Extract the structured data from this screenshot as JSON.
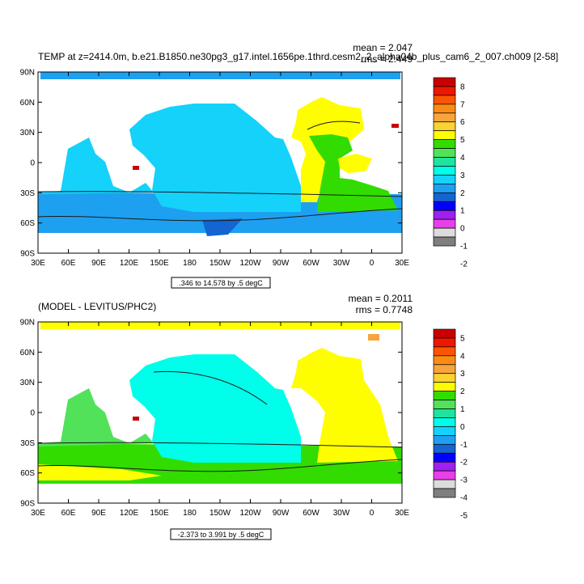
{
  "chart_data": [
    {
      "type": "heatmap",
      "title": "TEMP at z=2414.0m, b.e21.B1850.ne30pg3_g17.intel.1656pe.1thrd.cesm2_2_alpha04b_plus_cam6_2_007.ch009 [2-58]",
      "stats": {
        "mean": "mean = 2.047",
        "rms": "rms = 2.449"
      },
      "x_ticks": [
        "30E",
        "60E",
        "90E",
        "120E",
        "150E",
        "180",
        "150W",
        "120W",
        "90W",
        "60W",
        "30W",
        "0",
        "30E"
      ],
      "y_ticks": [
        "90N",
        "60N",
        "30N",
        "0",
        "30S",
        "60S",
        "90S"
      ],
      "xlim": [
        30,
        390
      ],
      "ylim": [
        -90,
        90
      ],
      "contour_info": ".346 to 14.578 by .5 degC",
      "colorbar": {
        "labels": [
          "8",
          "7",
          "6",
          "5",
          "4",
          "3",
          "2",
          "1",
          "0",
          "-1",
          "-2"
        ],
        "colors": [
          "#c80000",
          "#ec1800",
          "#fa5500",
          "#fa8c14",
          "#f8a43c",
          "#fad232",
          "#fefe00",
          "#32dc00",
          "#52e25a",
          "#1ee4a0",
          "#00ffea",
          "#14d2fa",
          "#1ea0f0",
          "#1464d2",
          "#0000ff",
          "#a020f0",
          "#e640e6",
          "#dcdcdc",
          "#7f7f7f"
        ]
      }
    },
    {
      "type": "heatmap",
      "title": "(MODEL - LEVITUS/PHC2)",
      "stats": {
        "mean": "mean = 0.2011",
        "rms": "rms = 0.7748"
      },
      "x_ticks": [
        "30E",
        "60E",
        "90E",
        "120E",
        "150E",
        "180",
        "150W",
        "120W",
        "90W",
        "60W",
        "30W",
        "0",
        "30E"
      ],
      "y_ticks": [
        "90N",
        "60N",
        "30N",
        "0",
        "30S",
        "60S",
        "90S"
      ],
      "xlim": [
        30,
        390
      ],
      "ylim": [
        -90,
        90
      ],
      "contour_info": "-2.373 to 3.991 by .5 degC",
      "colorbar": {
        "labels": [
          "5",
          "4",
          "3",
          "2",
          "1",
          "0",
          "-1",
          "-2",
          "-3",
          "-4",
          "-5"
        ],
        "colors": [
          "#c80000",
          "#ec1800",
          "#fa5500",
          "#fa8c14",
          "#f8a43c",
          "#fad232",
          "#fefe00",
          "#32dc00",
          "#52e25a",
          "#1ee4a0",
          "#00ffea",
          "#14d2fa",
          "#1ea0f0",
          "#1464d2",
          "#0000ff",
          "#a020f0",
          "#e640e6",
          "#dcdcdc",
          "#7f7f7f"
        ]
      }
    }
  ]
}
